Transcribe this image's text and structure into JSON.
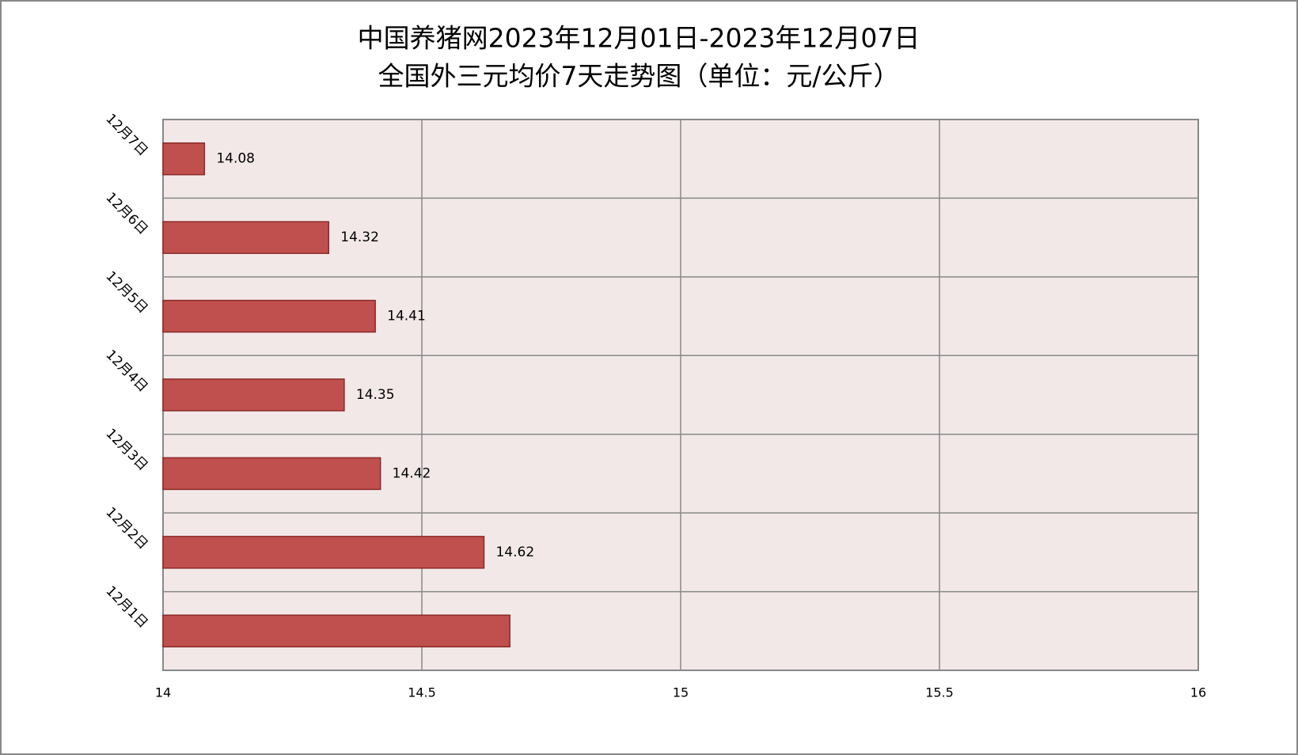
{
  "chart_data": {
    "type": "bar",
    "orientation": "horizontal",
    "title": [
      "中国养猪网2023年12月01日-2023年12月07日",
      "全国外三元均价7天走势图（单位：元/公斤）"
    ],
    "categories": [
      "12月1日",
      "12月2日",
      "12月3日",
      "12月4日",
      "12月5日",
      "12月6日",
      "12月7日"
    ],
    "values": [
      14.67,
      14.62,
      14.42,
      14.35,
      14.41,
      14.32,
      14.08
    ],
    "value_labels": [
      null,
      "14.62",
      "14.42",
      "14.35",
      "14.41",
      "14.32",
      "14.08"
    ],
    "color": "#c0504d",
    "xlim": [
      14,
      16
    ],
    "xticks": [
      14,
      14.5,
      15,
      15.5,
      16
    ],
    "grid": true
  }
}
